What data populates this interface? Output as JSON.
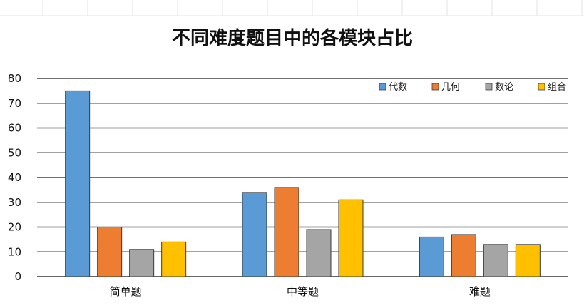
{
  "chart_data": {
    "type": "bar",
    "title": "不同难度题目中的各模块占比",
    "xlabel": "",
    "ylabel": "",
    "categories": [
      "简单题",
      "中等题",
      "难题"
    ],
    "series": [
      {
        "name": "代数",
        "color": "#5b9bd5",
        "values": [
          75,
          34,
          16
        ]
      },
      {
        "name": "几何",
        "color": "#ed7d31",
        "values": [
          20,
          36,
          17
        ]
      },
      {
        "name": "数论",
        "color": "#a5a5a5",
        "values": [
          11,
          19,
          13
        ]
      },
      {
        "name": "组合",
        "color": "#ffc000",
        "values": [
          14,
          31,
          13
        ]
      }
    ],
    "ylim": [
      0,
      80
    ],
    "yticks": [
      0,
      10,
      20,
      30,
      40,
      50,
      60,
      70,
      80
    ],
    "grid": true,
    "legend_position": "top-right"
  }
}
